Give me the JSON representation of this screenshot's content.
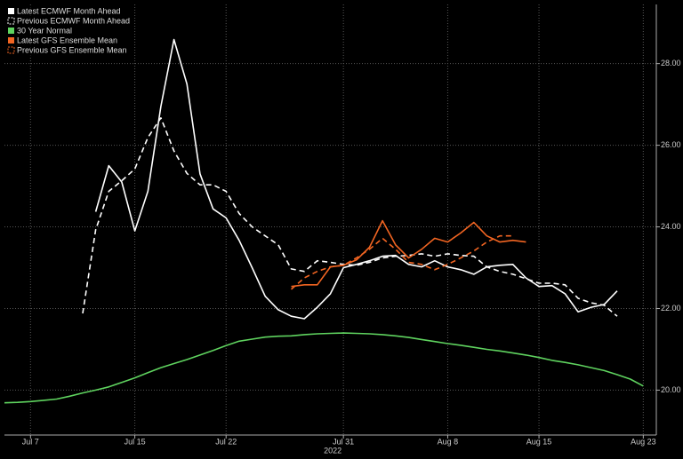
{
  "chart_data": {
    "type": "line",
    "x": [
      "2022-07-05",
      "2022-07-06",
      "2022-07-07",
      "2022-07-08",
      "2022-07-09",
      "2022-07-10",
      "2022-07-11",
      "2022-07-12",
      "2022-07-13",
      "2022-07-14",
      "2022-07-15",
      "2022-07-16",
      "2022-07-17",
      "2022-07-18",
      "2022-07-19",
      "2022-07-20",
      "2022-07-21",
      "2022-07-22",
      "2022-07-23",
      "2022-07-24",
      "2022-07-25",
      "2022-07-26",
      "2022-07-27",
      "2022-07-28",
      "2022-07-29",
      "2022-07-30",
      "2022-07-31",
      "2022-08-01",
      "2022-08-02",
      "2022-08-03",
      "2022-08-04",
      "2022-08-05",
      "2022-08-06",
      "2022-08-07",
      "2022-08-08",
      "2022-08-09",
      "2022-08-10",
      "2022-08-11",
      "2022-08-12",
      "2022-08-13",
      "2022-08-14",
      "2022-08-15",
      "2022-08-16",
      "2022-08-17",
      "2022-08-18",
      "2022-08-19",
      "2022-08-20",
      "2022-08-21",
      "2022-08-22",
      "2022-08-23"
    ],
    "series": [
      {
        "name": "Latest ECMWF Month Ahead",
        "color": "#ffffff",
        "dash": false,
        "values": [
          null,
          null,
          null,
          null,
          null,
          null,
          null,
          24.37,
          25.5,
          25.1,
          23.9,
          24.87,
          26.95,
          28.59,
          27.5,
          25.3,
          24.44,
          24.22,
          23.67,
          23.0,
          22.3,
          21.97,
          21.81,
          21.75,
          22.03,
          22.36,
          23.0,
          23.08,
          23.17,
          23.28,
          23.3,
          23.08,
          23.02,
          23.17,
          23.02,
          22.95,
          22.84,
          23.02,
          23.06,
          23.08,
          22.75,
          22.54,
          22.56,
          22.36,
          21.92,
          22.03,
          22.1,
          22.43,
          null,
          null
        ]
      },
      {
        "name": "Previous ECMWF Month Ahead",
        "color": "#ffffff",
        "dash": true,
        "values": [
          null,
          null,
          null,
          null,
          null,
          null,
          21.88,
          23.93,
          24.87,
          25.13,
          25.42,
          26.19,
          26.67,
          25.86,
          25.31,
          25.03,
          25.03,
          24.87,
          24.33,
          24.0,
          23.78,
          23.56,
          22.97,
          22.91,
          23.17,
          23.13,
          23.08,
          23.06,
          23.13,
          23.24,
          23.28,
          23.3,
          23.34,
          23.28,
          23.34,
          23.3,
          23.28,
          23.02,
          22.91,
          22.84,
          22.73,
          22.62,
          22.62,
          22.58,
          22.25,
          22.14,
          22.08,
          21.81,
          null,
          null
        ]
      },
      {
        "name": "30 Year Normal",
        "color": "#5fd35f",
        "dash": false,
        "values": [
          19.69,
          19.7,
          19.72,
          19.75,
          19.78,
          19.85,
          19.93,
          20.0,
          20.08,
          20.19,
          20.3,
          20.43,
          20.55,
          20.65,
          20.75,
          20.86,
          20.97,
          21.09,
          21.2,
          21.25,
          21.3,
          21.32,
          21.33,
          21.36,
          21.38,
          21.39,
          21.4,
          21.39,
          21.38,
          21.36,
          21.33,
          21.29,
          21.24,
          21.19,
          21.14,
          21.1,
          21.05,
          21.0,
          20.96,
          20.91,
          20.86,
          20.8,
          20.73,
          20.68,
          20.62,
          20.55,
          20.48,
          20.38,
          20.27,
          20.1
        ]
      },
      {
        "name": "Latest GFS Ensemble Mean",
        "color": "#f26522",
        "dash": false,
        "values": [
          null,
          null,
          null,
          null,
          null,
          null,
          null,
          null,
          null,
          null,
          null,
          null,
          null,
          null,
          null,
          null,
          null,
          null,
          null,
          null,
          null,
          null,
          22.54,
          22.58,
          22.58,
          23.02,
          23.06,
          23.19,
          23.5,
          24.15,
          23.56,
          23.24,
          23.45,
          23.72,
          23.63,
          23.85,
          24.11,
          23.78,
          23.63,
          23.67,
          23.63,
          null,
          null,
          null,
          null,
          null,
          null,
          null,
          null,
          null
        ]
      },
      {
        "name": "Previous GFS Ensemble Mean",
        "color": "#f26522",
        "dash": true,
        "values": [
          null,
          null,
          null,
          null,
          null,
          null,
          null,
          null,
          null,
          null,
          null,
          null,
          null,
          null,
          null,
          null,
          null,
          null,
          null,
          null,
          null,
          null,
          22.47,
          22.75,
          22.91,
          23.02,
          23.06,
          23.24,
          23.45,
          23.72,
          23.45,
          23.13,
          23.08,
          22.95,
          23.08,
          23.24,
          23.41,
          23.63,
          23.78,
          23.78,
          null,
          null,
          null,
          null,
          null,
          null,
          null,
          null,
          null,
          null
        ]
      }
    ],
    "xlim": [
      "2022-07-05",
      "2022-08-24"
    ],
    "xticks": [
      {
        "value": "2022-07-07",
        "label": "Jul 7"
      },
      {
        "value": "2022-07-15",
        "label": "Jul 15"
      },
      {
        "value": "2022-07-22",
        "label": "Jul 22"
      },
      {
        "value": "2022-07-31",
        "label": "Jul 31"
      },
      {
        "value": "2022-08-08",
        "label": "Aug 8"
      },
      {
        "value": "2022-08-15",
        "label": "Aug 15"
      },
      {
        "value": "2022-08-23",
        "label": "Aug 23"
      }
    ],
    "year_label": "2022",
    "ylim": [
      18.9,
      29.45
    ],
    "yticks": [
      {
        "value": 20,
        "label": "20.00"
      },
      {
        "value": 22,
        "label": "22.00"
      },
      {
        "value": 24,
        "label": "24.00"
      },
      {
        "value": 26,
        "label": "26.00"
      },
      {
        "value": 28,
        "label": "28.00"
      }
    ],
    "grid": true,
    "legend": "upper-left"
  }
}
